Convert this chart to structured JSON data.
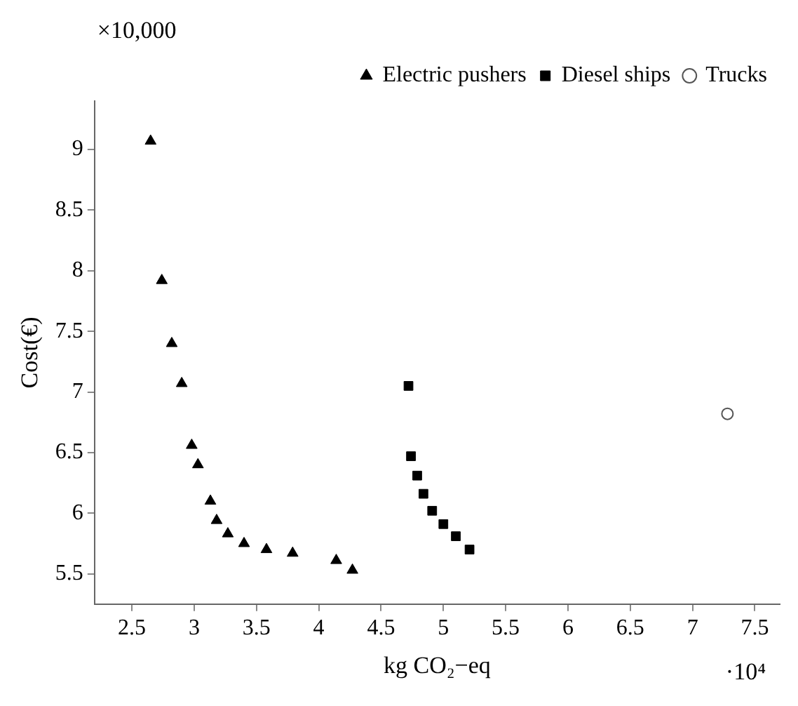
{
  "chart_data": {
    "type": "scatter",
    "xlabel": "kg CO₂−eq",
    "ylabel": "Cost(€)",
    "annotations": [
      "×10,000",
      "·10⁴"
    ],
    "xlim": [
      2.2,
      7.7
    ],
    "xticks": [
      2.5,
      3,
      3.5,
      4,
      4.5,
      5,
      5.5,
      6,
      6.5,
      7,
      7.5
    ],
    "ylim": [
      5.25,
      9.4
    ],
    "yticks": [
      5.5,
      6,
      6.5,
      7,
      7.5,
      8,
      8.5,
      9
    ],
    "grid": false,
    "legend": "top right",
    "series": [
      {
        "name": "Electric pushers",
        "color": "#000000",
        "marker": "triangle",
        "x": [
          2.65,
          2.74,
          2.82,
          2.9,
          2.98,
          3.03,
          3.13,
          3.18,
          3.27,
          3.4,
          3.58,
          3.79,
          4.14,
          4.27
        ],
        "values": [
          9.07,
          7.92,
          7.4,
          7.07,
          6.56,
          6.4,
          6.1,
          5.94,
          5.83,
          5.75,
          5.7,
          5.67,
          5.61,
          5.53
        ]
      },
      {
        "name": "Diesel ships",
        "color": "#000000",
        "marker": "square",
        "x": [
          4.72,
          4.74,
          4.79,
          4.84,
          4.91,
          5.0,
          5.1,
          5.21
        ],
        "values": [
          7.05,
          6.47,
          6.31,
          6.16,
          6.02,
          5.91,
          5.81,
          5.7
        ]
      },
      {
        "name": "Trucks",
        "color": "#555555",
        "marker": "circle",
        "x": [
          7.28
        ],
        "values": [
          6.82
        ]
      }
    ]
  }
}
